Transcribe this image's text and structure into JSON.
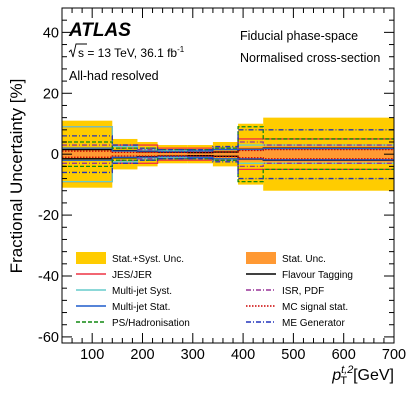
{
  "chart_data": {
    "type": "step",
    "experiment": "ATLAS",
    "energy_line": {
      "sqrt_s_prefix": "s",
      "energy": "= 13 TeV, 36.1 fb",
      "lumi_sup": "-1"
    },
    "region": "All-had resolved",
    "phase_space": "Fiducial phase-space",
    "normalisation": "Normalised cross-section",
    "ylabel": "Fractional Uncertainty [%]",
    "xlabel": {
      "p": "p",
      "sup": "t,2",
      "sub": "T",
      "unit": "[GeV]"
    },
    "xlim": [
      40,
      700
    ],
    "ylim": [
      -62,
      48
    ],
    "yticks": [
      "-60",
      "-40",
      "-20",
      "0",
      "20",
      "40"
    ],
    "xticks": [
      "100",
      "200",
      "300",
      "400",
      "500",
      "600",
      "700"
    ],
    "bin_edges": [
      40,
      140,
      190,
      230,
      290,
      340,
      390,
      440,
      700
    ],
    "series": [
      {
        "name": "Stat.+Syst. Unc.",
        "style": "band",
        "color": "#ffcc00",
        "up": [
          11,
          5,
          4,
          3,
          3,
          4,
          10,
          12
        ],
        "down": [
          -11,
          -5,
          -4,
          -3,
          -3,
          -4,
          -10,
          -12
        ]
      },
      {
        "name": "Stat. Unc.",
        "style": "band",
        "color": "#ff9933",
        "up": [
          1.6,
          0.8,
          0.8,
          0.8,
          0.9,
          1.2,
          2.4,
          2.6
        ],
        "down": [
          -1.6,
          -0.8,
          -0.8,
          -0.8,
          -0.9,
          -1.2,
          -2.4,
          -2.6
        ]
      },
      {
        "name": "JES/JER",
        "style": "solid",
        "color": "#ee3344",
        "up": [
          9,
          3,
          3,
          2,
          2,
          2,
          5,
          5
        ],
        "down": [
          -9,
          -3,
          -3,
          -2,
          -2,
          -2,
          -5,
          -5
        ]
      },
      {
        "name": "Flavour Tagging",
        "style": "solid",
        "color": "#000000",
        "up": [
          1.5,
          1.2,
          0.8,
          0.6,
          0.5,
          0.7,
          1.6,
          2.0
        ],
        "down": [
          -1.5,
          -1.2,
          -0.8,
          -0.6,
          -0.5,
          -0.7,
          -1.6,
          -2.0
        ]
      },
      {
        "name": "Multi-jet Syst.",
        "style": "solid",
        "color": "#66cccc",
        "up": [
          9,
          2.5,
          1.5,
          1.2,
          1.2,
          2,
          3,
          3
        ],
        "down": [
          -9,
          -2.5,
          -1.5,
          -1.2,
          -1.2,
          -2,
          -3,
          -3
        ]
      },
      {
        "name": "ISR, PDF",
        "style": "dashdot",
        "color": "#993399",
        "up": [
          3,
          2,
          1.5,
          1.5,
          1.5,
          2,
          4,
          3
        ],
        "down": [
          -3,
          -2,
          -1.5,
          -1.5,
          -1.5,
          -2,
          -4,
          -3
        ]
      },
      {
        "name": "Multi-jet Stat.",
        "style": "solid",
        "color": "#1f5ccc",
        "up": [
          2,
          1,
          1,
          0.8,
          1,
          1.5,
          1.5,
          1.8
        ],
        "down": [
          -2,
          -1,
          -1,
          -0.8,
          -1,
          -1.5,
          -1.5,
          -1.8
        ]
      },
      {
        "name": "MC signal stat.",
        "style": "dotted",
        "color": "#cc0000",
        "up": [
          1,
          0.6,
          0.6,
          0.6,
          0.6,
          0.8,
          1.2,
          1.5
        ],
        "down": [
          -1,
          -0.6,
          -0.6,
          -0.6,
          -0.6,
          -0.8,
          -1.2,
          -1.5
        ]
      },
      {
        "name": "PS/Hadronisation",
        "style": "dashed",
        "color": "#118811",
        "up": [
          4,
          2,
          2,
          1.5,
          1.5,
          2,
          9,
          5
        ],
        "down": [
          -4,
          -2,
          -2,
          -1.5,
          -1.5,
          -2,
          -9,
          -5
        ]
      },
      {
        "name": "ME Generator",
        "style": "dashdot",
        "color": "#2233bb",
        "up": [
          6,
          3,
          2,
          1.5,
          1.5,
          2.5,
          8,
          8
        ],
        "down": [
          -6,
          -3,
          -2,
          -1.5,
          -1.5,
          -2.5,
          -8,
          -8
        ]
      }
    ],
    "legend_order": [
      [
        "Stat.+Syst. Unc.",
        "Stat. Unc."
      ],
      [
        "JES/JER",
        "Flavour Tagging"
      ],
      [
        "Multi-jet Syst.",
        "ISR, PDF"
      ],
      [
        "Multi-jet Stat.",
        "MC signal stat."
      ],
      [
        "PS/Hadronisation",
        "ME Generator"
      ]
    ],
    "legend_placement": "bottom"
  }
}
